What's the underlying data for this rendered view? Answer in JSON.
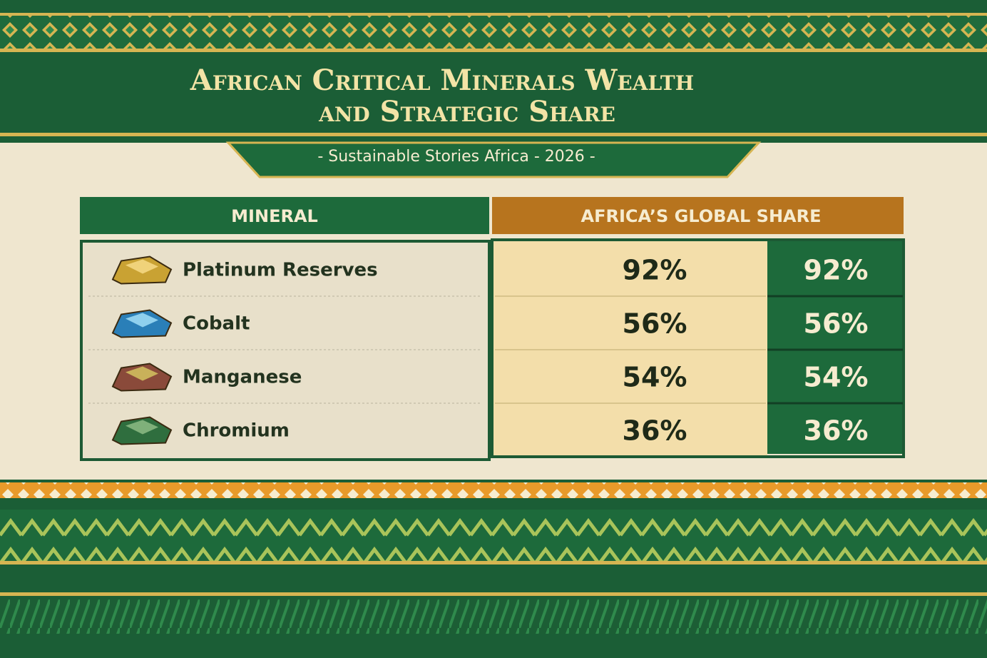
{
  "header": {
    "title_lines": [
      "African Critical Minerals Wealth",
      "and Strategic Share"
    ],
    "subtitle": "- Sustainable Stories Africa - 2026 -"
  },
  "table": {
    "columns": [
      "MINERAL",
      "AFRICA’S GLOBAL SHARE"
    ],
    "rows": [
      [
        "Platinum Reserves",
        "92%",
        "92%"
      ],
      [
        "Cobalt",
        "56%",
        "56%"
      ],
      [
        "Manganese",
        "54%",
        "54%"
      ],
      [
        "Chromium",
        "36%",
        "36%"
      ]
    ]
  }
}
